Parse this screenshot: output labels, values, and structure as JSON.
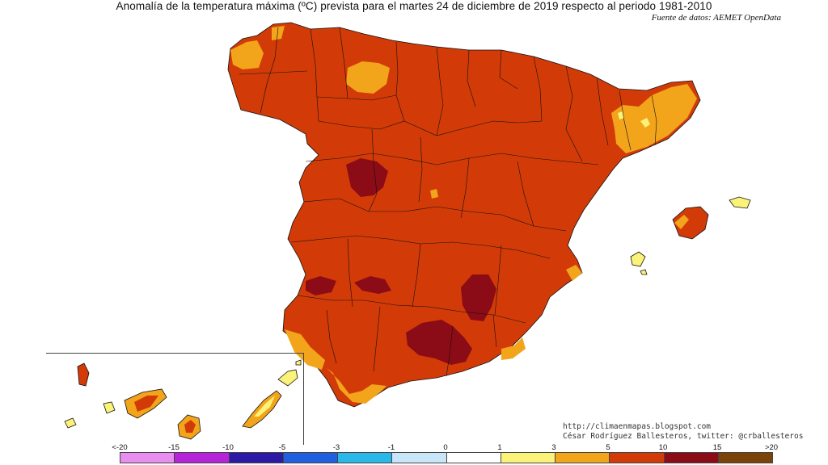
{
  "header": {
    "title": "Anomalía de la temperatura máxima (ºC) prevista para el martes 24 de diciembre de 2019 respecto al periodo 1981-2010",
    "source": "Fuente de datos: AEMET OpenData"
  },
  "credits": {
    "website": "http://climaenmapas.blogspot.com",
    "author": "César Rodríguez Ballesteros, twitter: @crballesteros"
  },
  "legend": {
    "tick_labels": [
      "<-20",
      "-15",
      "-10",
      "-5",
      "-3",
      "-1",
      "0",
      "1",
      "3",
      "5",
      "10",
      "15",
      ">20"
    ],
    "bins": [
      {
        "color": "#e88ef0"
      },
      {
        "color": "#b623d9"
      },
      {
        "color": "#2a1aa5"
      },
      {
        "color": "#1f5fe0"
      },
      {
        "color": "#2ab8ea"
      },
      {
        "color": "#c8e6f7"
      },
      {
        "color": "#ffffff"
      },
      {
        "color": "#fbf27a"
      },
      {
        "color": "#f2a41b"
      },
      {
        "color": "#d23b08"
      },
      {
        "color": "#8b0c16"
      },
      {
        "color": "#7a4308"
      }
    ]
  },
  "colors": {
    "main_anomaly": "#d23b08",
    "moderate_anomaly": "#f2a41b",
    "strong_anomaly": "#8b0c16",
    "light_anomaly": "#fbf27a",
    "borders": "#111111"
  }
}
